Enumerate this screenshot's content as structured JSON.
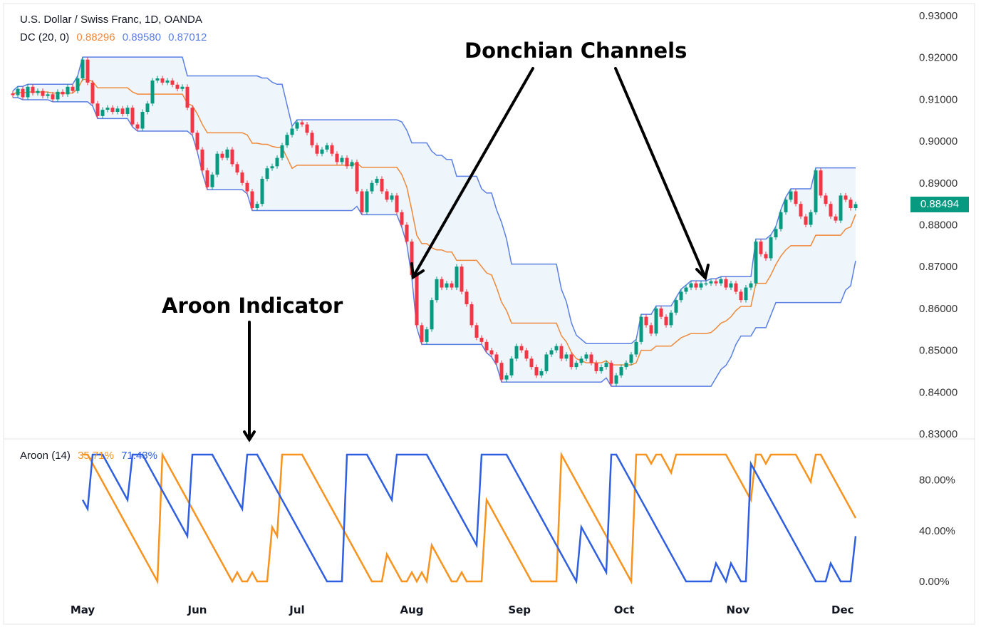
{
  "header": {
    "symbol_title": "U.S. Dollar / Swiss Franc, 1D, OANDA",
    "dc_label": "DC (20, 0)",
    "dc_mid": "0.88296",
    "dc_upper": "0.89580",
    "dc_lower": "0.87012"
  },
  "aroon_legend": {
    "label": "Aroon (14)",
    "up": "35.71%",
    "down": "71.43%"
  },
  "annotations": {
    "donchian": "Donchian Channels",
    "aroon": "Aroon Indicator"
  },
  "last_price": "0.88494",
  "colors": {
    "up_candle": "#089981",
    "down_candle": "#F23645",
    "dc_band": "#5B7FE3",
    "dc_mid": "#F0883A",
    "dc_fill": "#EEF6FC",
    "aroon_up": "#F7931E",
    "aroon_down": "#2F5FE0"
  },
  "chart_data": {
    "type": "candlestick",
    "title": "U.S. Dollar / Swiss Franc, 1D, OANDA",
    "indicators": [
      "Donchian Channels (20, 0)",
      "Aroon (14)"
    ],
    "price_axis": {
      "ylim": [
        0.83,
        0.93
      ],
      "ticks": [
        "0.93000",
        "0.92000",
        "0.91000",
        "0.90000",
        "0.89000",
        "0.88000",
        "0.87000",
        "0.86000",
        "0.85000",
        "0.84000",
        "0.83000"
      ]
    },
    "aroon_axis": {
      "ylim": [
        0,
        100
      ],
      "ticks": [
        "80.00%",
        "40.00%",
        "0.00%"
      ]
    },
    "x_ticks": [
      {
        "label": "May",
        "bar": 14
      },
      {
        "label": "Jun",
        "bar": 37
      },
      {
        "label": "Jul",
        "bar": 57
      },
      {
        "label": "Aug",
        "bar": 80
      },
      {
        "label": "Sep",
        "bar": 101.6
      },
      {
        "label": "Oct",
        "bar": 122.6
      },
      {
        "label": "Nov",
        "bar": 145.4
      },
      {
        "label": "Dec",
        "bar": 166.4
      }
    ],
    "closes": [
      0.911,
      0.9125,
      0.9105,
      0.913,
      0.9115,
      0.912,
      0.9108,
      0.9112,
      0.91,
      0.9118,
      0.9112,
      0.913,
      0.912,
      0.915,
      0.9195,
      0.914,
      0.909,
      0.906,
      0.9075,
      0.908,
      0.907,
      0.9078,
      0.9065,
      0.908,
      0.904,
      0.903,
      0.907,
      0.909,
      0.9145,
      0.915,
      0.914,
      0.9145,
      0.9135,
      0.9125,
      0.913,
      0.908,
      0.902,
      0.898,
      0.893,
      0.889,
      0.892,
      0.897,
      0.896,
      0.898,
      0.8945,
      0.8925,
      0.89,
      0.888,
      0.884,
      0.885,
      0.891,
      0.8935,
      0.894,
      0.896,
      0.899,
      0.9015,
      0.903,
      0.9045,
      0.904,
      0.902,
      0.899,
      0.897,
      0.898,
      0.899,
      0.897,
      0.895,
      0.896,
      0.894,
      0.895,
      0.888,
      0.883,
      0.888,
      0.89,
      0.891,
      0.888,
      0.886,
      0.887,
      0.883,
      0.88,
      0.876,
      0.868,
      0.856,
      0.852,
      0.855,
      0.862,
      0.867,
      0.865,
      0.866,
      0.865,
      0.87,
      0.864,
      0.861,
      0.856,
      0.853,
      0.852,
      0.85,
      0.849,
      0.847,
      0.843,
      0.844,
      0.848,
      0.851,
      0.85,
      0.848,
      0.846,
      0.844,
      0.845,
      0.849,
      0.85,
      0.851,
      0.848,
      0.849,
      0.846,
      0.847,
      0.848,
      0.849,
      0.847,
      0.845,
      0.846,
      0.847,
      0.842,
      0.844,
      0.846,
      0.847,
      0.849,
      0.852,
      0.858,
      0.856,
      0.854,
      0.86,
      0.858,
      0.856,
      0.859,
      0.862,
      0.864,
      0.865,
      0.866,
      0.865,
      0.866,
      0.866,
      0.8665,
      0.866,
      0.867,
      0.865,
      0.866,
      0.864,
      0.862,
      0.865,
      0.866,
      0.876,
      0.873,
      0.872,
      0.877,
      0.879,
      0.883,
      0.886,
      0.888,
      0.885,
      0.882,
      0.88,
      0.883,
      0.893,
      0.887,
      0.885,
      0.882,
      0.881,
      0.887,
      0.886,
      0.884,
      0.88494
    ]
  }
}
